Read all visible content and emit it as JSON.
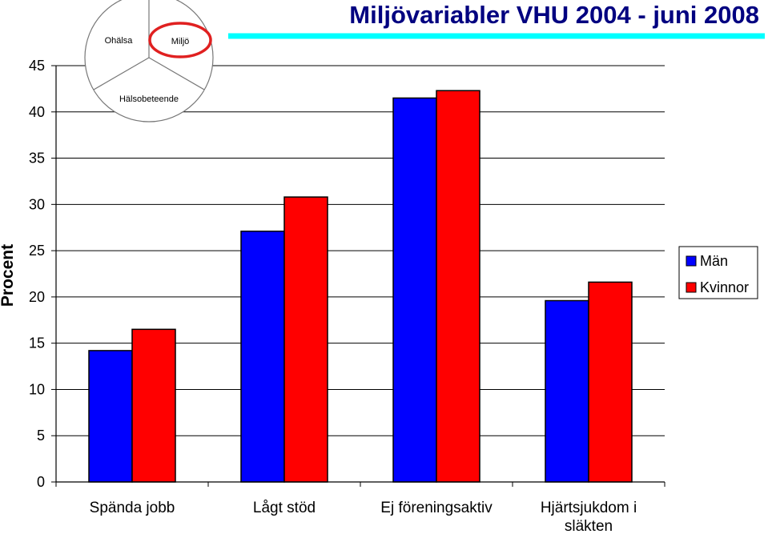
{
  "chart_data": {
    "type": "bar",
    "title": "Miljövariabler VHU 2004 - juni 2008",
    "ylabel": "Procent",
    "xlabel": "",
    "ylim": [
      0,
      45
    ],
    "yticks": [
      0,
      5,
      10,
      15,
      20,
      25,
      30,
      35,
      40,
      45
    ],
    "grid": true,
    "legend_position": "right",
    "categories": [
      [
        "Spända jobb"
      ],
      [
        "Lågt stöd"
      ],
      [
        "Ej föreningsaktiv"
      ],
      [
        "Hjärtsjukdom i",
        "släkten"
      ]
    ],
    "series": [
      {
        "name": "Män",
        "color": "#0000ff",
        "values": [
          14.2,
          27.1,
          41.5,
          19.6
        ]
      },
      {
        "name": "Kvinnor",
        "color": "#ff0000",
        "values": [
          16.5,
          30.8,
          42.3,
          21.6
        ]
      }
    ]
  },
  "logo": {
    "labels": {
      "ohalsa": "Ohälsa",
      "miljo": "Miljö",
      "halsobeteende": "Hälsobeteende"
    },
    "highlight_color": "#e02020"
  },
  "colors": {
    "title": "#000080",
    "accent_line": "#00ffff"
  }
}
